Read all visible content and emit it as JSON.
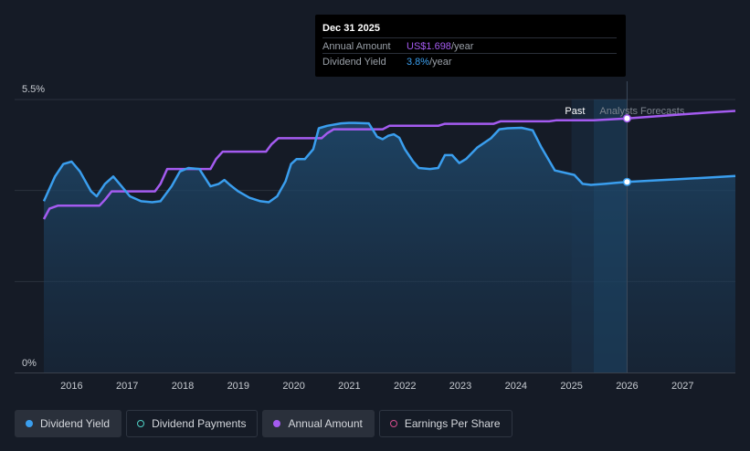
{
  "chart_data": {
    "type": "line",
    "y_axis": {
      "labels": [
        "5.5%",
        "0%"
      ],
      "ylim": [
        0,
        5.5
      ]
    },
    "x_axis": {
      "ticks": [
        "2016",
        "2017",
        "2018",
        "2019",
        "2020",
        "2021",
        "2022",
        "2023",
        "2024",
        "2025",
        "2026",
        "2027"
      ],
      "xlim": [
        2015.5,
        2027.95
      ]
    },
    "past_label": "Past",
    "forecast_label": "Analysts Forecasts",
    "forecast_start": 2025.4,
    "highlight_x": 2026.0,
    "series": [
      {
        "name": "Dividend Yield",
        "color": "#3a9eee",
        "points": [
          [
            2015.5,
            3.45
          ],
          [
            2015.7,
            3.95
          ],
          [
            2015.85,
            4.2
          ],
          [
            2016.0,
            4.25
          ],
          [
            2016.15,
            4.05
          ],
          [
            2016.35,
            3.65
          ],
          [
            2016.45,
            3.55
          ],
          [
            2016.6,
            3.8
          ],
          [
            2016.75,
            3.95
          ],
          [
            2016.9,
            3.75
          ],
          [
            2017.05,
            3.55
          ],
          [
            2017.25,
            3.45
          ],
          [
            2017.45,
            3.43
          ],
          [
            2017.6,
            3.45
          ],
          [
            2017.8,
            3.75
          ],
          [
            2017.95,
            4.05
          ],
          [
            2018.1,
            4.12
          ],
          [
            2018.3,
            4.1
          ],
          [
            2018.5,
            3.75
          ],
          [
            2018.65,
            3.8
          ],
          [
            2018.75,
            3.88
          ],
          [
            2018.85,
            3.78
          ],
          [
            2019.0,
            3.65
          ],
          [
            2019.2,
            3.52
          ],
          [
            2019.4,
            3.45
          ],
          [
            2019.55,
            3.43
          ],
          [
            2019.7,
            3.55
          ],
          [
            2019.85,
            3.85
          ],
          [
            2019.95,
            4.2
          ],
          [
            2020.05,
            4.3
          ],
          [
            2020.2,
            4.3
          ],
          [
            2020.35,
            4.5
          ],
          [
            2020.45,
            4.92
          ],
          [
            2020.6,
            4.97
          ],
          [
            2020.85,
            5.02
          ],
          [
            2021.0,
            5.03
          ],
          [
            2021.1,
            5.03
          ],
          [
            2021.35,
            5.02
          ],
          [
            2021.5,
            4.75
          ],
          [
            2021.6,
            4.7
          ],
          [
            2021.7,
            4.77
          ],
          [
            2021.8,
            4.8
          ],
          [
            2021.9,
            4.73
          ],
          [
            2022.0,
            4.5
          ],
          [
            2022.15,
            4.25
          ],
          [
            2022.25,
            4.12
          ],
          [
            2022.45,
            4.1
          ],
          [
            2022.6,
            4.12
          ],
          [
            2022.72,
            4.38
          ],
          [
            2022.85,
            4.38
          ],
          [
            2022.98,
            4.22
          ],
          [
            2023.1,
            4.3
          ],
          [
            2023.3,
            4.53
          ],
          [
            2023.55,
            4.72
          ],
          [
            2023.7,
            4.9
          ],
          [
            2023.85,
            4.92
          ],
          [
            2024.1,
            4.93
          ],
          [
            2024.3,
            4.88
          ],
          [
            2024.45,
            4.55
          ],
          [
            2024.7,
            4.07
          ],
          [
            2024.9,
            4.02
          ],
          [
            2025.05,
            3.98
          ],
          [
            2025.2,
            3.8
          ],
          [
            2025.35,
            3.78
          ],
          [
            2025.6,
            3.8
          ],
          [
            2025.8,
            3.82
          ],
          [
            2026.0,
            3.84
          ],
          [
            2026.5,
            3.87
          ],
          [
            2027.0,
            3.9
          ],
          [
            2027.5,
            3.93
          ],
          [
            2027.95,
            3.96
          ]
        ]
      },
      {
        "name": "Annual Amount",
        "color": "#a45bf0",
        "points": [
          [
            2015.5,
            3.09
          ],
          [
            2015.6,
            3.3
          ],
          [
            2015.75,
            3.36
          ],
          [
            2016.5,
            3.36
          ],
          [
            2016.6,
            3.48
          ],
          [
            2016.72,
            3.65
          ],
          [
            2017.5,
            3.65
          ],
          [
            2017.6,
            3.8
          ],
          [
            2017.72,
            4.1
          ],
          [
            2018.5,
            4.1
          ],
          [
            2018.6,
            4.3
          ],
          [
            2018.72,
            4.45
          ],
          [
            2019.5,
            4.45
          ],
          [
            2019.6,
            4.6
          ],
          [
            2019.72,
            4.72
          ],
          [
            2020.5,
            4.72
          ],
          [
            2020.6,
            4.82
          ],
          [
            2020.72,
            4.9
          ],
          [
            2021.6,
            4.9
          ],
          [
            2021.72,
            4.97
          ],
          [
            2022.6,
            4.97
          ],
          [
            2022.72,
            5.01
          ],
          [
            2023.6,
            5.01
          ],
          [
            2023.72,
            5.06
          ],
          [
            2024.6,
            5.06
          ],
          [
            2024.72,
            5.08
          ],
          [
            2025.4,
            5.08
          ],
          [
            2026.0,
            5.12
          ],
          [
            2026.5,
            5.16
          ],
          [
            2027.0,
            5.2
          ],
          [
            2027.5,
            5.24
          ],
          [
            2027.95,
            5.27
          ]
        ]
      }
    ],
    "tooltip": {
      "date": "Dec 31 2025",
      "annual_amount_label": "Annual Amount",
      "annual_amount_value": "US$1.698",
      "annual_amount_suffix": "/year",
      "dividend_yield_label": "Dividend Yield",
      "dividend_yield_value": "3.8%",
      "dividend_yield_suffix": "/year"
    },
    "legend": [
      {
        "label": "Dividend Yield",
        "style": "filled",
        "color": "#3a9eee",
        "active": true
      },
      {
        "label": "Dividend Payments",
        "style": "ring",
        "color": "#4fd1c5",
        "active": false
      },
      {
        "label": "Annual Amount",
        "style": "filled",
        "color": "#a45bf0",
        "active": true
      },
      {
        "label": "Earnings Per Share",
        "style": "ring",
        "color": "#d44c8c",
        "active": false
      }
    ],
    "grid": true
  }
}
